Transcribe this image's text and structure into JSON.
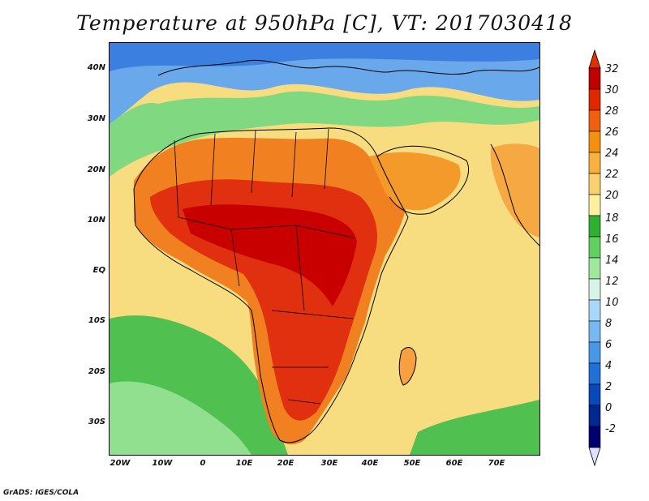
{
  "title": "Temperature at 950hPa [C], VT: 2017030418",
  "credit": "GrADS: IGES/COLA",
  "lat_labels": [
    "40N",
    "30N",
    "20N",
    "10N",
    "EQ",
    "10S",
    "20S",
    "30S"
  ],
  "lon_labels": [
    "20W",
    "10W",
    "0",
    "10E",
    "20E",
    "30E",
    "40E",
    "50E",
    "60E",
    "70E"
  ],
  "colorbar": {
    "levels": [
      "32",
      "30",
      "28",
      "26",
      "24",
      "22",
      "20",
      "18",
      "16",
      "14",
      "12",
      "10",
      "8",
      "6",
      "4",
      "2",
      "0",
      "-2"
    ],
    "colors": [
      "#c00000",
      "#e02800",
      "#f06010",
      "#f4900f",
      "#f8b040",
      "#fad070",
      "#fdf0a0",
      "#30b030",
      "#60d060",
      "#a0e8a0",
      "#d8f4e8",
      "#a8d8f8",
      "#78b8f0",
      "#4898e8",
      "#2070d8",
      "#0848b8",
      "#002890",
      "#000070"
    ],
    "top_color": "#e03000",
    "bottom_color": "#e0e0ff"
  },
  "map": {
    "ocean_color": "#f8dc80",
    "north_cold_color": "#6aa8ec",
    "south_green_color": "#50c050"
  }
}
